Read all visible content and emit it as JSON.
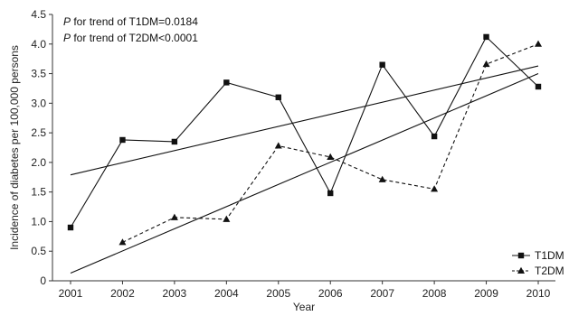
{
  "chart_data": {
    "type": "line",
    "xlabel": "Year",
    "ylabel": "Incidence of diabetes per 100,000 persons",
    "x": [
      2001,
      2002,
      2003,
      2004,
      2005,
      2006,
      2007,
      2008,
      2009,
      2010
    ],
    "ylim": [
      0,
      4.5
    ],
    "yticks": [
      "0",
      "0.5",
      "1.0",
      "1.5",
      "2.0",
      "2.5",
      "3.0",
      "3.5",
      "4.0",
      "4.5"
    ],
    "xticks": [
      "2001",
      "2002",
      "2003",
      "2004",
      "2005",
      "2006",
      "2007",
      "2008",
      "2009",
      "2010"
    ],
    "series": [
      {
        "name": "T1DM",
        "marker": "square",
        "line_style": "solid",
        "x": [
          2001,
          2002,
          2003,
          2004,
          2005,
          2006,
          2007,
          2008,
          2009,
          2010
        ],
        "values": [
          0.9,
          2.38,
          2.35,
          3.35,
          3.1,
          1.48,
          3.65,
          2.44,
          4.12,
          3.28
        ],
        "trend": {
          "x": [
            2001,
            2010
          ],
          "values": [
            1.79,
            3.63
          ]
        }
      },
      {
        "name": "T2DM",
        "marker": "triangle",
        "line_style": "dashed",
        "x": [
          2002,
          2003,
          2004,
          2005,
          2006,
          2007,
          2008,
          2009,
          2010
        ],
        "values": [
          0.65,
          1.07,
          1.04,
          2.28,
          2.09,
          1.71,
          1.55,
          3.66,
          4.0
        ],
        "trend": {
          "x": [
            2001,
            2010
          ],
          "values": [
            0.13,
            3.5
          ]
        }
      }
    ],
    "annotations": [
      {
        "italic": "P",
        "text": " for trend of T1DM=0.0184"
      },
      {
        "italic": "P",
        "text": " for trend of T2DM<0.0001"
      }
    ],
    "legend_position": "right",
    "grid": false,
    "colors": {
      "line": "#111111",
      "axis": "#333333"
    }
  }
}
